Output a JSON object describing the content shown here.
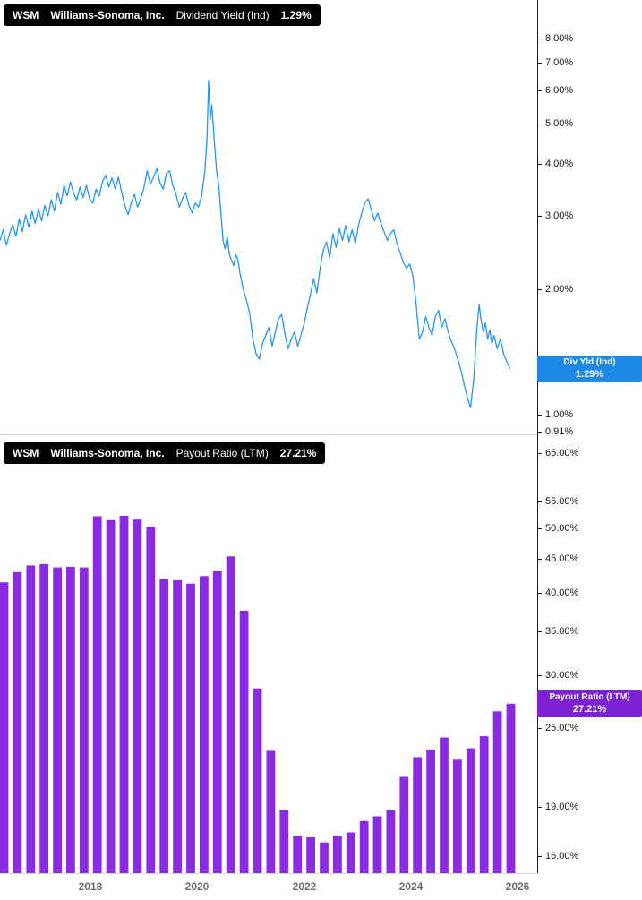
{
  "x_axis": {
    "domain": [
      2016.3,
      2026.37
    ],
    "ticks": [
      {
        "t": 2018,
        "label": "2018"
      },
      {
        "t": 2020,
        "label": "2020"
      },
      {
        "t": 2022,
        "label": "2022"
      },
      {
        "t": 2024,
        "label": "2024"
      },
      {
        "t": 2026,
        "label": "2026"
      }
    ]
  },
  "chart_data": [
    {
      "type": "line",
      "title": "WSM Williams-Sonoma, Inc. Dividend Yield (Ind)",
      "header": {
        "ticker": "WSM",
        "company": "Williams-Sonoma, Inc.",
        "metric": "Dividend Yield (Ind)",
        "value": "1.29%"
      },
      "badge": {
        "line1": "Div Yld (Ind)",
        "line2": "1.29%",
        "value": 1.29,
        "color": "#1e88e5"
      },
      "color": "#2196f3",
      "scale": "log",
      "unit": "%",
      "ylim": [
        0.897,
        9.9
      ],
      "yticks": [
        {
          "v": 8,
          "label": "8.00%"
        },
        {
          "v": 7,
          "label": "7.00%"
        },
        {
          "v": 6,
          "label": "6.00%"
        },
        {
          "v": 5,
          "label": "5.00%"
        },
        {
          "v": 4,
          "label": "4.00%"
        },
        {
          "v": 3,
          "label": "3.00%"
        },
        {
          "v": 2,
          "label": "2.00%"
        },
        {
          "v": 1,
          "label": "1.00%"
        },
        {
          "v": 0.91,
          "label": "0.91%"
        }
      ],
      "points": [
        [
          2016.3,
          2.62
        ],
        [
          2016.36,
          2.78
        ],
        [
          2016.42,
          2.55
        ],
        [
          2016.48,
          2.72
        ],
        [
          2016.54,
          2.86
        ],
        [
          2016.6,
          2.68
        ],
        [
          2016.66,
          2.95
        ],
        [
          2016.72,
          2.75
        ],
        [
          2016.78,
          3.02
        ],
        [
          2016.84,
          2.82
        ],
        [
          2016.9,
          3.08
        ],
        [
          2016.96,
          2.88
        ],
        [
          2017.02,
          3.12
        ],
        [
          2017.08,
          2.92
        ],
        [
          2017.14,
          3.18
        ],
        [
          2017.2,
          3.0
        ],
        [
          2017.26,
          3.28
        ],
        [
          2017.32,
          3.08
        ],
        [
          2017.38,
          3.42
        ],
        [
          2017.44,
          3.2
        ],
        [
          2017.5,
          3.55
        ],
        [
          2017.56,
          3.35
        ],
        [
          2017.62,
          3.62
        ],
        [
          2017.68,
          3.4
        ],
        [
          2017.74,
          3.28
        ],
        [
          2017.8,
          3.52
        ],
        [
          2017.86,
          3.32
        ],
        [
          2017.92,
          3.55
        ],
        [
          2017.98,
          3.3
        ],
        [
          2018.04,
          3.22
        ],
        [
          2018.1,
          3.48
        ],
        [
          2018.16,
          3.35
        ],
        [
          2018.22,
          3.62
        ],
        [
          2018.28,
          3.76
        ],
        [
          2018.34,
          3.52
        ],
        [
          2018.4,
          3.7
        ],
        [
          2018.46,
          3.48
        ],
        [
          2018.52,
          3.72
        ],
        [
          2018.58,
          3.42
        ],
        [
          2018.64,
          3.18
        ],
        [
          2018.7,
          3.02
        ],
        [
          2018.76,
          3.22
        ],
        [
          2018.82,
          3.38
        ],
        [
          2018.88,
          3.15
        ],
        [
          2018.94,
          3.3
        ],
        [
          2019.0,
          3.52
        ],
        [
          2019.06,
          3.85
        ],
        [
          2019.12,
          3.58
        ],
        [
          2019.18,
          3.72
        ],
        [
          2019.24,
          3.9
        ],
        [
          2019.3,
          3.6
        ],
        [
          2019.36,
          3.48
        ],
        [
          2019.42,
          3.8
        ],
        [
          2019.48,
          3.85
        ],
        [
          2019.54,
          3.55
        ],
        [
          2019.6,
          3.38
        ],
        [
          2019.66,
          3.15
        ],
        [
          2019.72,
          3.3
        ],
        [
          2019.78,
          3.42
        ],
        [
          2019.84,
          3.18
        ],
        [
          2019.9,
          3.05
        ],
        [
          2019.96,
          3.22
        ],
        [
          2020.02,
          3.15
        ],
        [
          2020.08,
          3.35
        ],
        [
          2020.14,
          3.85
        ],
        [
          2020.18,
          4.6
        ],
        [
          2020.21,
          6.35
        ],
        [
          2020.24,
          5.1
        ],
        [
          2020.27,
          5.55
        ],
        [
          2020.3,
          4.9
        ],
        [
          2020.33,
          4.3
        ],
        [
          2020.36,
          3.85
        ],
        [
          2020.4,
          3.55
        ],
        [
          2020.44,
          3.05
        ],
        [
          2020.48,
          2.62
        ],
        [
          2020.52,
          2.5
        ],
        [
          2020.56,
          2.68
        ],
        [
          2020.6,
          2.42
        ],
        [
          2020.64,
          2.35
        ],
        [
          2020.68,
          2.28
        ],
        [
          2020.72,
          2.42
        ],
        [
          2020.76,
          2.35
        ],
        [
          2020.8,
          2.18
        ],
        [
          2020.86,
          2.0
        ],
        [
          2020.92,
          1.88
        ],
        [
          2020.98,
          1.75
        ],
        [
          2021.04,
          1.52
        ],
        [
          2021.1,
          1.4
        ],
        [
          2021.16,
          1.36
        ],
        [
          2021.22,
          1.48
        ],
        [
          2021.28,
          1.55
        ],
        [
          2021.34,
          1.62
        ],
        [
          2021.4,
          1.46
        ],
        [
          2021.46,
          1.58
        ],
        [
          2021.52,
          1.7
        ],
        [
          2021.58,
          1.74
        ],
        [
          2021.64,
          1.56
        ],
        [
          2021.7,
          1.44
        ],
        [
          2021.76,
          1.52
        ],
        [
          2021.82,
          1.58
        ],
        [
          2021.88,
          1.46
        ],
        [
          2021.94,
          1.55
        ],
        [
          2022.0,
          1.65
        ],
        [
          2022.06,
          1.8
        ],
        [
          2022.12,
          1.95
        ],
        [
          2022.18,
          2.12
        ],
        [
          2022.24,
          1.96
        ],
        [
          2022.3,
          2.25
        ],
        [
          2022.36,
          2.48
        ],
        [
          2022.42,
          2.6
        ],
        [
          2022.48,
          2.38
        ],
        [
          2022.54,
          2.72
        ],
        [
          2022.6,
          2.52
        ],
        [
          2022.66,
          2.8
        ],
        [
          2022.72,
          2.62
        ],
        [
          2022.78,
          2.85
        ],
        [
          2022.84,
          2.6
        ],
        [
          2022.9,
          2.78
        ],
        [
          2022.96,
          2.58
        ],
        [
          2023.02,
          2.85
        ],
        [
          2023.08,
          3.05
        ],
        [
          2023.14,
          3.22
        ],
        [
          2023.2,
          3.3
        ],
        [
          2023.26,
          3.1
        ],
        [
          2023.32,
          2.92
        ],
        [
          2023.38,
          3.05
        ],
        [
          2023.44,
          2.88
        ],
        [
          2023.5,
          2.75
        ],
        [
          2023.56,
          2.62
        ],
        [
          2023.62,
          2.72
        ],
        [
          2023.68,
          2.78
        ],
        [
          2023.74,
          2.58
        ],
        [
          2023.8,
          2.45
        ],
        [
          2023.86,
          2.32
        ],
        [
          2023.92,
          2.25
        ],
        [
          2023.98,
          2.3
        ],
        [
          2024.04,
          2.15
        ],
        [
          2024.1,
          1.85
        ],
        [
          2024.16,
          1.52
        ],
        [
          2024.22,
          1.58
        ],
        [
          2024.28,
          1.72
        ],
        [
          2024.34,
          1.62
        ],
        [
          2024.4,
          1.55
        ],
        [
          2024.46,
          1.72
        ],
        [
          2024.52,
          1.78
        ],
        [
          2024.58,
          1.62
        ],
        [
          2024.64,
          1.7
        ],
        [
          2024.7,
          1.58
        ],
        [
          2024.76,
          1.5
        ],
        [
          2024.82,
          1.44
        ],
        [
          2024.88,
          1.36
        ],
        [
          2024.94,
          1.28
        ],
        [
          2025.0,
          1.18
        ],
        [
          2025.06,
          1.1
        ],
        [
          2025.12,
          1.04
        ],
        [
          2025.18,
          1.22
        ],
        [
          2025.24,
          1.62
        ],
        [
          2025.28,
          1.84
        ],
        [
          2025.32,
          1.68
        ],
        [
          2025.36,
          1.58
        ],
        [
          2025.4,
          1.66
        ],
        [
          2025.44,
          1.52
        ],
        [
          2025.48,
          1.6
        ],
        [
          2025.52,
          1.48
        ],
        [
          2025.56,
          1.55
        ],
        [
          2025.62,
          1.44
        ],
        [
          2025.68,
          1.52
        ],
        [
          2025.74,
          1.4
        ],
        [
          2025.8,
          1.34
        ],
        [
          2025.86,
          1.29
        ]
      ]
    },
    {
      "type": "bar",
      "title": "WSM Williams-Sonoma, Inc. Payout Ratio (LTM)",
      "header": {
        "ticker": "WSM",
        "company": "Williams-Sonoma, Inc.",
        "metric": "Payout Ratio (LTM)",
        "value": "27.21%"
      },
      "badge": {
        "line1": "Payout Ratio (LTM)",
        "line2": "27.21%",
        "value": 27.21,
        "color": "#7c22d4"
      },
      "color": "#8a2be2",
      "scale": "log",
      "unit": "%",
      "ylim": [
        15.1,
        69.4
      ],
      "yticks": [
        {
          "v": 65,
          "label": "65.00%"
        },
        {
          "v": 55,
          "label": "55.00%"
        },
        {
          "v": 50,
          "label": "50.00%"
        },
        {
          "v": 45,
          "label": "45.00%"
        },
        {
          "v": 40,
          "label": "40.00%"
        },
        {
          "v": 35,
          "label": "35.00%"
        },
        {
          "v": 30,
          "label": "30.00%"
        },
        {
          "v": 25,
          "label": "25.00%"
        },
        {
          "v": 19,
          "label": "19.00%"
        },
        {
          "v": 16,
          "label": "16.00%"
        }
      ],
      "bars": [
        [
          2016.375,
          41.5
        ],
        [
          2016.625,
          43.0
        ],
        [
          2016.875,
          44.0
        ],
        [
          2017.125,
          44.2
        ],
        [
          2017.375,
          43.7
        ],
        [
          2017.625,
          43.8
        ],
        [
          2017.875,
          43.7
        ],
        [
          2018.125,
          52.2
        ],
        [
          2018.375,
          51.5
        ],
        [
          2018.625,
          52.3
        ],
        [
          2018.875,
          51.6
        ],
        [
          2019.125,
          50.3
        ],
        [
          2019.375,
          42.0
        ],
        [
          2019.625,
          41.8
        ],
        [
          2019.875,
          41.3
        ],
        [
          2020.125,
          42.4
        ],
        [
          2020.375,
          43.1
        ],
        [
          2020.625,
          45.4
        ],
        [
          2020.875,
          37.6
        ],
        [
          2021.125,
          28.7
        ],
        [
          2021.375,
          23.1
        ],
        [
          2021.625,
          18.8
        ],
        [
          2021.875,
          17.2
        ],
        [
          2022.125,
          17.1
        ],
        [
          2022.375,
          16.8
        ],
        [
          2022.625,
          17.2
        ],
        [
          2022.875,
          17.4
        ],
        [
          2023.125,
          18.1
        ],
        [
          2023.375,
          18.4
        ],
        [
          2023.625,
          18.8
        ],
        [
          2023.875,
          21.1
        ],
        [
          2024.125,
          22.6
        ],
        [
          2024.375,
          23.2
        ],
        [
          2024.625,
          24.2
        ],
        [
          2024.875,
          22.4
        ],
        [
          2025.125,
          23.3
        ],
        [
          2025.375,
          24.3
        ],
        [
          2025.625,
          26.5
        ],
        [
          2025.875,
          27.21
        ]
      ]
    }
  ]
}
